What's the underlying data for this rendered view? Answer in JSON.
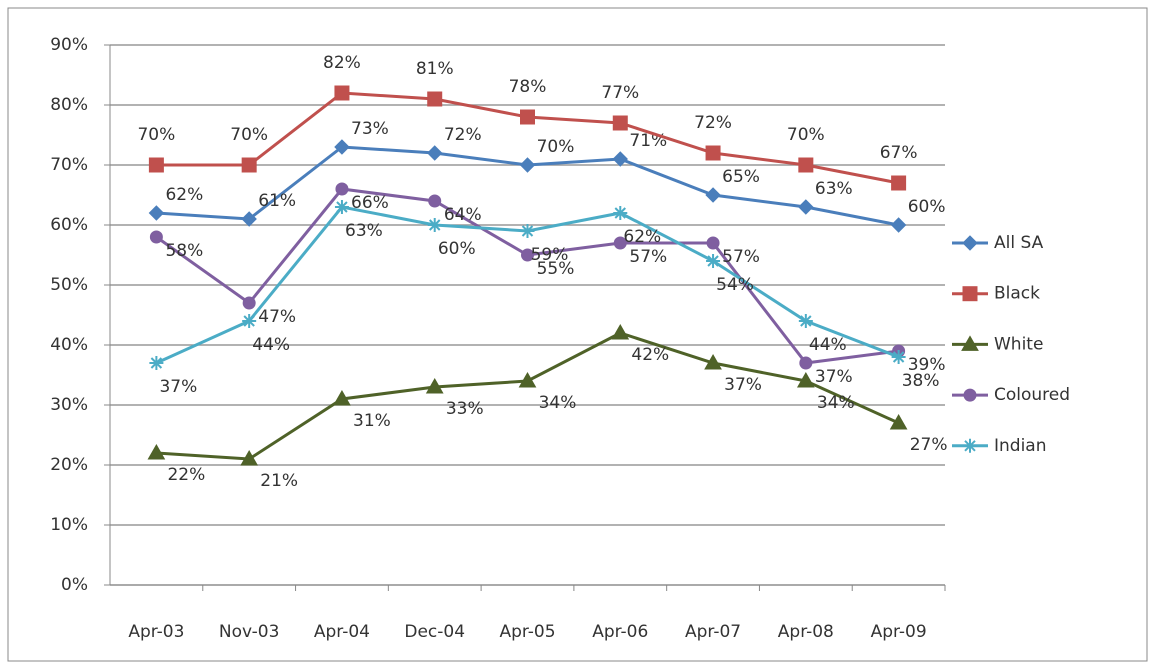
{
  "chart_data": {
    "type": "line",
    "categories": [
      "Apr-03",
      "Nov-03",
      "Apr-04",
      "Dec-04",
      "Apr-05",
      "Apr-06",
      "Apr-07",
      "Apr-08",
      "Apr-09"
    ],
    "series": [
      {
        "name": "All SA",
        "color": "#4a7ebb",
        "marker": "diamond",
        "values": [
          62,
          61,
          73,
          72,
          70,
          71,
          65,
          63,
          60
        ],
        "value_labels": [
          "62%",
          "61%",
          "73%",
          "72%",
          "70%",
          "71%",
          "65%",
          "63%",
          "60%"
        ]
      },
      {
        "name": "Black",
        "color": "#c0504d",
        "marker": "square",
        "values": [
          70,
          70,
          82,
          81,
          78,
          77,
          72,
          70,
          67
        ],
        "value_labels": [
          "70%",
          "70%",
          "82%",
          "81%",
          "78%",
          "77%",
          "72%",
          "70%",
          "67%"
        ]
      },
      {
        "name": "White",
        "color": "#4f6228",
        "marker": "triangle",
        "values": [
          22,
          21,
          31,
          33,
          34,
          42,
          37,
          34,
          27
        ],
        "value_labels": [
          "22%",
          "21%",
          "31%",
          "33%",
          "34%",
          "42%",
          "37%",
          "34%",
          "27%"
        ]
      },
      {
        "name": "Coloured",
        "color": "#7f5fa0",
        "marker": "circle",
        "values": [
          58,
          47,
          66,
          64,
          55,
          57,
          57,
          37,
          39
        ],
        "value_labels": [
          "58%",
          "47%",
          "66%",
          "64%",
          "55%",
          "57%",
          "57%",
          "37%",
          "39%"
        ]
      },
      {
        "name": "Indian",
        "color": "#4bacc6",
        "marker": "star",
        "values": [
          37,
          44,
          63,
          60,
          59,
          62,
          54,
          44,
          38
        ],
        "value_labels": [
          "37%",
          "44%",
          "63%",
          "60%",
          "59%",
          "62%",
          "54%",
          "44%",
          "38%"
        ]
      }
    ],
    "ylim": [
      0,
      90
    ],
    "yticks": [
      {
        "value": 0,
        "label": "0%"
      },
      {
        "value": 10,
        "label": "10%"
      },
      {
        "value": 20,
        "label": "20%"
      },
      {
        "value": 30,
        "label": "30%"
      },
      {
        "value": 40,
        "label": "40%"
      },
      {
        "value": 50,
        "label": "50%"
      },
      {
        "value": 60,
        "label": "60%"
      },
      {
        "value": 70,
        "label": "70%"
      },
      {
        "value": 80,
        "label": "80%"
      },
      {
        "value": 90,
        "label": "90%"
      }
    ],
    "grid": true,
    "legend": "right"
  }
}
